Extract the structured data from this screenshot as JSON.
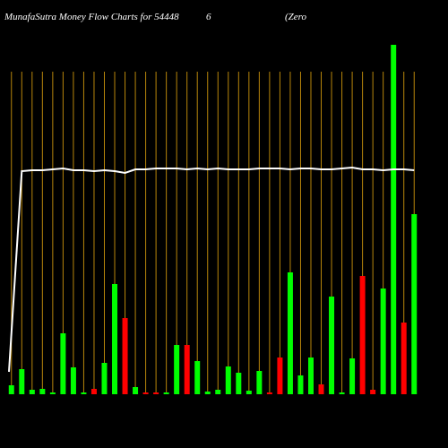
{
  "chart_data": {
    "type": "bar",
    "title": [
      "MunafaSutra  Money Flow  Charts for 54448",
      "6",
      "(Zero"
    ],
    "categories": [
      null,
      null,
      null,
      null,
      null,
      null,
      null,
      null,
      null,
      null,
      null,
      null,
      null,
      null,
      null,
      null,
      null,
      null,
      null,
      null,
      null,
      null,
      null,
      null,
      null,
      null,
      null,
      null,
      null,
      null,
      null,
      null,
      null,
      null,
      null,
      null,
      null,
      null,
      null,
      null
    ],
    "values": [
      10,
      28,
      5,
      6,
      2,
      68,
      30,
      2,
      6,
      35,
      123,
      85,
      8,
      2,
      2,
      2,
      55,
      55,
      37,
      3,
      5,
      31,
      24,
      4,
      26,
      2,
      41,
      136,
      21,
      41,
      11,
      109,
      2,
      40,
      132,
      5,
      118,
      390,
      80,
      201
    ],
    "colors": [
      "#00ff00",
      "#00ff00",
      "#00ff00",
      "#00ff00",
      "#00ff00",
      "#00ff00",
      "#00ff00",
      "#00ff00",
      "#ff0000",
      "#00ff00",
      "#00ff00",
      "#ff0000",
      "#00ff00",
      "#ff0000",
      "#ff0000",
      "#00ff00",
      "#00ff00",
      "#ff0000",
      "#00ff00",
      "#00ff00",
      "#00ff00",
      "#00ff00",
      "#00ff00",
      "#00ff00",
      "#00ff00",
      "#ff0000",
      "#ff0000",
      "#00ff00",
      "#00ff00",
      "#00ff00",
      "#ff0000",
      "#00ff00",
      "#00ff00",
      "#00ff00",
      "#ff0000",
      "#ff0000",
      "#00ff00",
      "#00ff00",
      "#ff0000",
      "#00ff00"
    ],
    "line": {
      "color": "#ffffff",
      "values": [
        25,
        249,
        250,
        250,
        251,
        252,
        250,
        250,
        249,
        250,
        249,
        247,
        251,
        251,
        252,
        252,
        252,
        251,
        252,
        251,
        252,
        251,
        251,
        251,
        252,
        252,
        252,
        251,
        252,
        252,
        251,
        251,
        252,
        253,
        251,
        251,
        250,
        251,
        251,
        250
      ]
    },
    "ylim": [
      0,
      440
    ],
    "grid": true,
    "grid_color": "#b8860b"
  }
}
